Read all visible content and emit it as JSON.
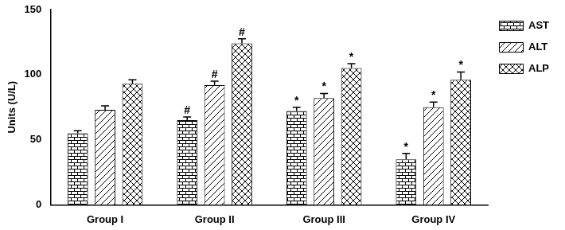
{
  "chart_data": {
    "type": "bar",
    "y_label": "Units (U/L)",
    "categories": [
      "Group I",
      "Group II",
      "Group III",
      "Group IV"
    ],
    "series": [
      {
        "name": "AST",
        "color": "#000000",
        "values": [
          55,
          65,
          72,
          35
        ],
        "errors": [
          2,
          2.5,
          3,
          4.5
        ],
        "annotations": [
          null,
          "#",
          "*",
          "*"
        ]
      },
      {
        "name": "ALT",
        "color": "#000000",
        "values": [
          73,
          92,
          82,
          75
        ],
        "errors": [
          3,
          3,
          3.5,
          4
        ],
        "annotations": [
          null,
          "#",
          "*",
          "*"
        ]
      },
      {
        "name": "ALP",
        "color": "#000000",
        "values": [
          93,
          124,
          105,
          96
        ],
        "errors": [
          3,
          3.5,
          3.5,
          6
        ],
        "annotations": [
          null,
          "#",
          "*",
          "*"
        ]
      }
    ],
    "ylim": [
      0,
      150
    ],
    "yticks": [
      0,
      50,
      100,
      150
    ],
    "grid": false,
    "legend": "right"
  }
}
